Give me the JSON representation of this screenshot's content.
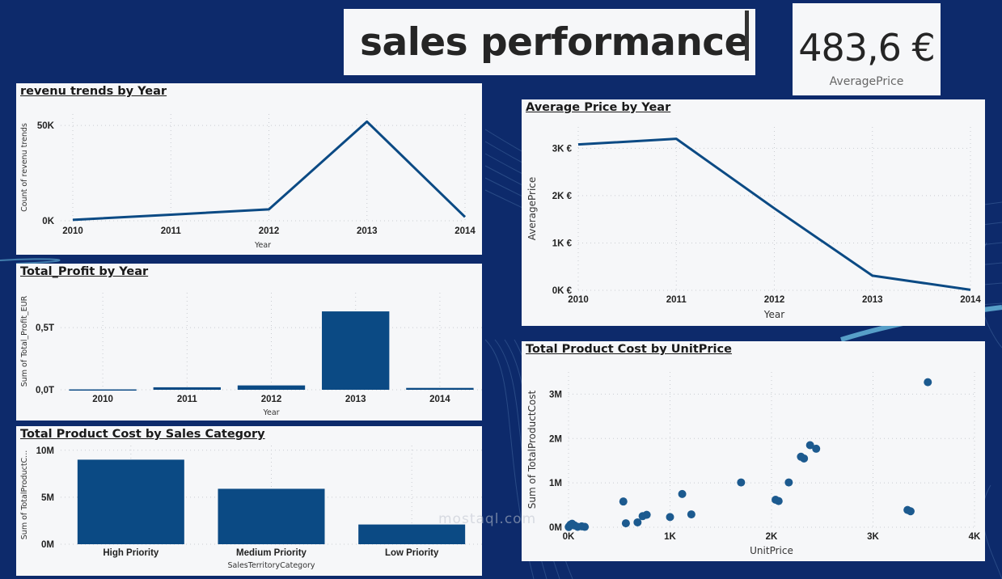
{
  "header": {
    "title": "sales performance",
    "kpi_value": "483,6 €",
    "kpi_label": "AveragePrice"
  },
  "watermark": "mostaql.com",
  "colors": {
    "background": "#0d2a6b",
    "panel": "#f6f7f9",
    "series": "#0b4a84",
    "scatter": "#1c5a8f"
  },
  "chart_data": [
    {
      "id": "revenue",
      "type": "line",
      "title": "revenu trends by Year",
      "xlabel": "Year",
      "ylabel": "Count of revenu trends",
      "categories": [
        "2010",
        "2011",
        "2012",
        "2013",
        "2014"
      ],
      "values": [
        500,
        3200,
        6000,
        52000,
        2000
      ],
      "ylim": [
        0,
        56000
      ],
      "yticks": [
        {
          "v": 0,
          "label": "0K"
        },
        {
          "v": 50000,
          "label": "50K"
        }
      ],
      "grid": true
    },
    {
      "id": "profit",
      "type": "bar",
      "title": "Total_Profit by Year",
      "xlabel": "Year",
      "ylabel": "Sum of Total_Profit_EUR",
      "categories": [
        "2010",
        "2011",
        "2012",
        "2013",
        "2014"
      ],
      "values": [
        0.003,
        0.02,
        0.035,
        0.63,
        0.015
      ],
      "ylim": [
        0,
        0.78
      ],
      "yticks": [
        {
          "v": 0,
          "label": "0,0T"
        },
        {
          "v": 0.5,
          "label": "0,5T"
        }
      ],
      "grid": true
    },
    {
      "id": "category",
      "type": "bar",
      "title": "Total Product Cost by Sales Category",
      "xlabel": "SalesTerritoryCategory",
      "ylabel": "Sum of TotalProductC...",
      "categories": [
        "High Priority",
        "Medium Priority",
        "Low Priority"
      ],
      "values": [
        9000000,
        5900000,
        2100000
      ],
      "ylim": [
        0,
        10500000
      ],
      "yticks": [
        {
          "v": 0,
          "label": "0M"
        },
        {
          "v": 5000000,
          "label": "5M"
        },
        {
          "v": 10000000,
          "label": "10M"
        }
      ],
      "grid": true
    },
    {
      "id": "avgprice",
      "type": "line",
      "title": "Average Price by Year",
      "xlabel": "Year",
      "ylabel": "AveragePrice",
      "categories": [
        "2010",
        "2011",
        "2012",
        "2013",
        "2014"
      ],
      "values": [
        3080,
        3200,
        1730,
        310,
        10
      ],
      "ylim": [
        0,
        3450
      ],
      "yticks": [
        {
          "v": 0,
          "label": "0K €"
        },
        {
          "v": 1000,
          "label": "1K €"
        },
        {
          "v": 2000,
          "label": "2K €"
        },
        {
          "v": 3000,
          "label": "3K €"
        }
      ],
      "grid": true
    },
    {
      "id": "scatter",
      "type": "scatter",
      "title": "Total Product Cost by UnitPrice",
      "xlabel": "UnitPrice",
      "ylabel": "Sum of TotalProductCost",
      "xlim": [
        0,
        4000
      ],
      "ylim": [
        0,
        3500000
      ],
      "xticks": [
        {
          "v": 0,
          "label": "0K"
        },
        {
          "v": 1000,
          "label": "1K"
        },
        {
          "v": 2000,
          "label": "2K"
        },
        {
          "v": 3000,
          "label": "3K"
        },
        {
          "v": 4000,
          "label": "4K"
        }
      ],
      "yticks": [
        {
          "v": 0,
          "label": "0M"
        },
        {
          "v": 1000000,
          "label": "1M"
        },
        {
          "v": 2000000,
          "label": "2M"
        },
        {
          "v": 3000000,
          "label": "3M"
        }
      ],
      "points": [
        {
          "x": 2,
          "y": 5000
        },
        {
          "x": 5,
          "y": 15000
        },
        {
          "x": 10,
          "y": 30000
        },
        {
          "x": 20,
          "y": 60000
        },
        {
          "x": 35,
          "y": 80000
        },
        {
          "x": 60,
          "y": 40000
        },
        {
          "x": 90,
          "y": 10000
        },
        {
          "x": 130,
          "y": 20000
        },
        {
          "x": 160,
          "y": 8000
        },
        {
          "x": 540,
          "y": 580000
        },
        {
          "x": 565,
          "y": 90000
        },
        {
          "x": 680,
          "y": 110000
        },
        {
          "x": 730,
          "y": 250000
        },
        {
          "x": 770,
          "y": 280000
        },
        {
          "x": 1000,
          "y": 230000
        },
        {
          "x": 1120,
          "y": 750000
        },
        {
          "x": 1210,
          "y": 290000
        },
        {
          "x": 1700,
          "y": 1010000
        },
        {
          "x": 2040,
          "y": 620000
        },
        {
          "x": 2070,
          "y": 590000
        },
        {
          "x": 2170,
          "y": 1010000
        },
        {
          "x": 2290,
          "y": 1590000
        },
        {
          "x": 2320,
          "y": 1550000
        },
        {
          "x": 2380,
          "y": 1850000
        },
        {
          "x": 2440,
          "y": 1770000
        },
        {
          "x": 3340,
          "y": 390000
        },
        {
          "x": 3370,
          "y": 360000
        },
        {
          "x": 3540,
          "y": 3270000
        }
      ],
      "grid": true
    }
  ]
}
